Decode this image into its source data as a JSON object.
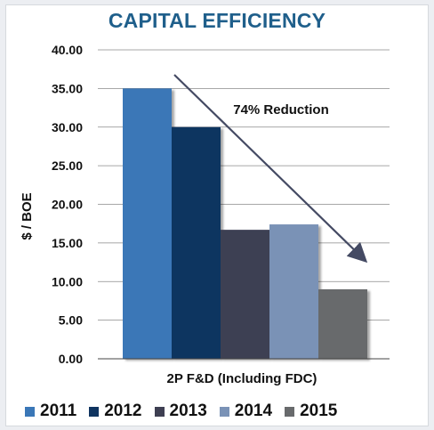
{
  "chart_data": {
    "type": "bar",
    "title": "CAPITAL EFFICIENCY",
    "ylabel": "$ / BOE",
    "xlabel": "2P F&D (Including FDC)",
    "ylim": [
      0,
      40
    ],
    "yticks": [
      "0.00",
      "5.00",
      "10.00",
      "15.00",
      "20.00",
      "25.00",
      "30.00",
      "35.00",
      "40.00"
    ],
    "grid": true,
    "legend_position": "bottom",
    "series": [
      {
        "name": "2011",
        "values": [
          35.0
        ],
        "color": "#3a77b7"
      },
      {
        "name": "2012",
        "values": [
          30.0
        ],
        "color": "#0f3460"
      },
      {
        "name": "2013",
        "values": [
          16.7
        ],
        "color": "#3e3f52"
      },
      {
        "name": "2014",
        "values": [
          17.4
        ],
        "color": "#7a92b6"
      },
      {
        "name": "2015",
        "values": [
          9.0
        ],
        "color": "#686a6c"
      }
    ],
    "annotation": {
      "text": "74% Reduction",
      "arrow": "downward trend arrow"
    }
  }
}
